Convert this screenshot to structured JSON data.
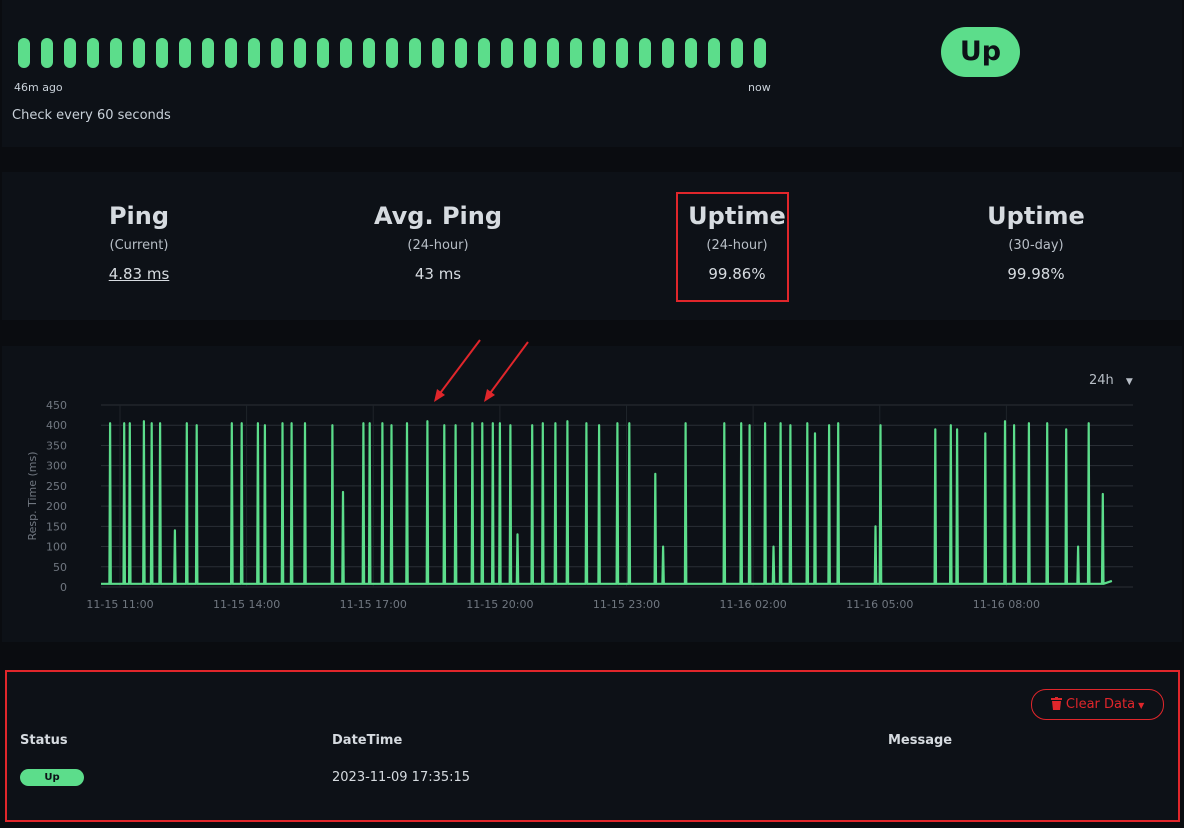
{
  "heartbeats": {
    "color": "#5cdd8b",
    "beats": [
      "up",
      "up",
      "up",
      "up",
      "up",
      "up",
      "up",
      "up",
      "up",
      "up",
      "up",
      "up",
      "up",
      "up",
      "up",
      "up",
      "up",
      "up",
      "up",
      "up",
      "up",
      "up",
      "up",
      "up",
      "up",
      "up",
      "up",
      "up",
      "up",
      "up",
      "up",
      "up",
      "up"
    ],
    "start_label": "46m ago",
    "end_label": "now"
  },
  "check_text": "Check every 60 seconds",
  "status_badge": "Up",
  "stats": [
    {
      "title": "Ping",
      "subtitle": "(Current)",
      "value": "4.83 ms"
    },
    {
      "title": "Avg. Ping",
      "subtitle": "(24-hour)",
      "value": "43 ms"
    },
    {
      "title": "Uptime",
      "subtitle": "(24-hour)",
      "value": "99.86%"
    },
    {
      "title": "Uptime",
      "subtitle": "(30-day)",
      "value": "99.98%"
    }
  ],
  "range_select": "24h",
  "chart_data": {
    "type": "line",
    "y_label": "Resp. Time (ms)",
    "ylim": [
      0,
      450
    ],
    "yticks": [
      0,
      50,
      100,
      150,
      200,
      250,
      300,
      350,
      400,
      450
    ],
    "xlim": [
      "11-15 10:33",
      "11-16 11:00"
    ],
    "xticks": [
      "11-15 11:00",
      "11-15 14:00",
      "11-15 17:00",
      "11-15 20:00",
      "11-15 23:00",
      "11-16 02:00",
      "11-16 05:00",
      "11-16 08:00"
    ],
    "grid": true,
    "x": [
      "11-15 10:33",
      "11-15 10:45",
      "11-15 10:46",
      "11-15 10:47",
      "11-15 11:05",
      "11-15 11:06",
      "11-15 11:07",
      "11-15 11:13",
      "11-15 11:14",
      "11-15 11:15",
      "11-15 11:33",
      "11-15 11:34",
      "11-15 11:35",
      "11-15 11:44",
      "11-15 11:45",
      "11-15 11:46",
      "11-15 11:56",
      "11-15 11:57",
      "11-15 11:58",
      "11-15 12:17",
      "11-15 12:18",
      "11-15 12:19",
      "11-15 12:34",
      "11-15 12:35",
      "11-15 12:36",
      "11-15 12:48",
      "11-15 12:49",
      "11-15 12:50",
      "11-15 13:38",
      "11-15 13:39",
      "11-15 13:40",
      "11-15 13:52",
      "11-15 13:53",
      "11-15 13:54",
      "11-15 14:15",
      "11-15 14:16",
      "11-15 14:17",
      "11-15 14:25",
      "11-15 14:26",
      "11-15 14:27",
      "11-15 14:50",
      "11-15 14:51",
      "11-15 14:52",
      "11-15 15:03",
      "11-15 15:04",
      "11-15 15:05",
      "11-15 15:22",
      "11-15 15:23",
      "11-15 15:24",
      "11-15 16:01",
      "11-15 16:02",
      "11-15 16:03",
      "11-15 16:16",
      "11-15 16:17",
      "11-15 16:18",
      "11-15 16:45",
      "11-15 16:46",
      "11-15 16:47",
      "11-15 16:54",
      "11-15 16:55",
      "11-15 16:56",
      "11-15 17:12",
      "11-15 17:13",
      "11-15 17:14",
      "11-15 17:25",
      "11-15 17:26",
      "11-15 17:27",
      "11-15 17:47",
      "11-15 17:48",
      "11-15 17:49",
      "11-15 18:16",
      "11-15 18:17",
      "11-15 18:18",
      "11-15 18:40",
      "11-15 18:41",
      "11-15 18:42",
      "11-15 18:56",
      "11-15 18:57",
      "11-15 18:58",
      "11-15 19:20",
      "11-15 19:21",
      "11-15 19:22",
      "11-15 19:34",
      "11-15 19:35",
      "11-15 19:36",
      "11-15 19:49",
      "11-15 19:50",
      "11-15 19:51",
      "11-15 19:59",
      "11-15 20:00",
      "11-15 20:01",
      "11-15 20:14",
      "11-15 20:15",
      "11-15 20:16",
      "11-15 20:24",
      "11-15 20:25",
      "11-15 20:26",
      "11-15 20:45",
      "11-15 20:46",
      "11-15 20:47",
      "11-15 21:00",
      "11-15 21:01",
      "11-15 21:02",
      "11-15 21:18",
      "11-15 21:19",
      "11-15 21:20",
      "11-15 21:35",
      "11-15 21:36",
      "11-15 21:37",
      "11-15 22:02",
      "11-15 22:03",
      "11-15 22:04",
      "11-15 22:20",
      "11-15 22:21",
      "11-15 22:22",
      "11-15 22:46",
      "11-15 22:47",
      "11-15 22:48",
      "11-15 23:03",
      "11-15 23:04",
      "11-15 23:05",
      "11-15 23:40",
      "11-15 23:41",
      "11-15 23:42",
      "11-15 23:51",
      "11-15 23:52",
      "11-15 23:53",
      "11-16 00:23",
      "11-16 00:24",
      "11-16 00:25",
      "11-16 01:18",
      "11-16 01:19",
      "11-16 01:20",
      "11-16 01:42",
      "11-16 01:43",
      "11-16 01:44",
      "11-16 01:54",
      "11-16 01:55",
      "11-16 01:56",
      "11-16 02:16",
      "11-16 02:17",
      "11-16 02:18",
      "11-16 02:28",
      "11-16 02:29",
      "11-16 02:30",
      "11-16 02:38",
      "11-16 02:39",
      "11-16 02:40",
      "11-16 02:52",
      "11-16 02:53",
      "11-16 02:54",
      "11-16 03:16",
      "11-16 03:17",
      "11-16 03:18",
      "11-16 03:27",
      "11-16 03:28",
      "11-16 03:29",
      "11-16 03:47",
      "11-16 03:48",
      "11-16 03:49",
      "11-16 04:00",
      "11-16 04:01",
      "11-16 04:02",
      "11-16 04:53",
      "11-16 04:54",
      "11-16 04:55",
      "11-16 05:00",
      "11-16 05:01",
      "11-16 05:02",
      "11-16 06:18",
      "11-16 06:19",
      "11-16 06:20",
      "11-16 06:40",
      "11-16 06:41",
      "11-16 06:42",
      "11-16 06:49",
      "11-16 06:50",
      "11-16 06:51",
      "11-16 07:29",
      "11-16 07:30",
      "11-16 07:31",
      "11-16 07:57",
      "11-16 07:58",
      "11-16 07:59",
      "11-16 08:10",
      "11-16 08:11",
      "11-16 08:12",
      "11-16 08:31",
      "11-16 08:32",
      "11-16 08:33",
      "11-16 08:57",
      "11-16 08:58",
      "11-16 08:59",
      "11-16 09:24",
      "11-16 09:25",
      "11-16 09:26",
      "11-16 09:41",
      "11-16 09:42",
      "11-16 09:43",
      "11-16 09:56",
      "11-16 09:57",
      "11-16 09:58",
      "11-16 10:16",
      "11-16 10:17",
      "11-16 10:18",
      "11-16 10:30"
    ],
    "series": [
      {
        "name": "Resp. Time",
        "color": "#5cdd8b",
        "values": [
          8,
          8,
          405,
          8,
          8,
          405,
          8,
          8,
          405,
          8,
          8,
          410,
          8,
          8,
          405,
          8,
          8,
          405,
          8,
          8,
          140,
          8,
          8,
          405,
          8,
          8,
          400,
          8,
          8,
          405,
          8,
          8,
          405,
          8,
          8,
          405,
          8,
          8,
          400,
          8,
          8,
          405,
          8,
          8,
          405,
          8,
          8,
          405,
          8,
          8,
          400,
          8,
          8,
          235,
          8,
          8,
          405,
          8,
          8,
          405,
          8,
          8,
          405,
          8,
          8,
          400,
          8,
          8,
          405,
          8,
          8,
          410,
          8,
          8,
          400,
          8,
          8,
          400,
          8,
          8,
          405,
          8,
          8,
          405,
          8,
          8,
          405,
          8,
          8,
          405,
          8,
          8,
          400,
          8,
          8,
          130,
          8,
          8,
          400,
          8,
          8,
          405,
          8,
          8,
          405,
          8,
          8,
          410,
          8,
          8,
          405,
          8,
          8,
          400,
          8,
          8,
          405,
          8,
          8,
          405,
          8,
          8,
          280,
          8,
          8,
          100,
          8,
          8,
          405,
          8,
          8,
          405,
          8,
          8,
          405,
          8,
          8,
          400,
          8,
          8,
          405,
          8,
          8,
          100,
          8,
          8,
          405,
          8,
          8,
          400,
          8,
          8,
          405,
          8,
          8,
          380,
          8,
          8,
          400,
          8,
          8,
          405,
          8,
          8,
          150,
          8,
          8,
          400,
          8,
          8,
          390,
          8,
          8,
          400,
          8,
          8,
          390,
          8,
          8,
          380,
          8,
          8,
          410,
          8,
          8,
          400,
          8,
          8,
          405,
          8,
          8,
          405,
          8,
          8,
          390,
          8,
          8,
          100,
          8,
          8,
          405,
          8,
          8,
          230,
          8,
          15
        ]
      }
    ]
  },
  "clear_button": "Clear Data",
  "table": {
    "headers": [
      "Status",
      "DateTime",
      "Message"
    ],
    "rows": [
      {
        "status": "Up",
        "datetime": "2023-11-09 17:35:15"
      }
    ]
  }
}
